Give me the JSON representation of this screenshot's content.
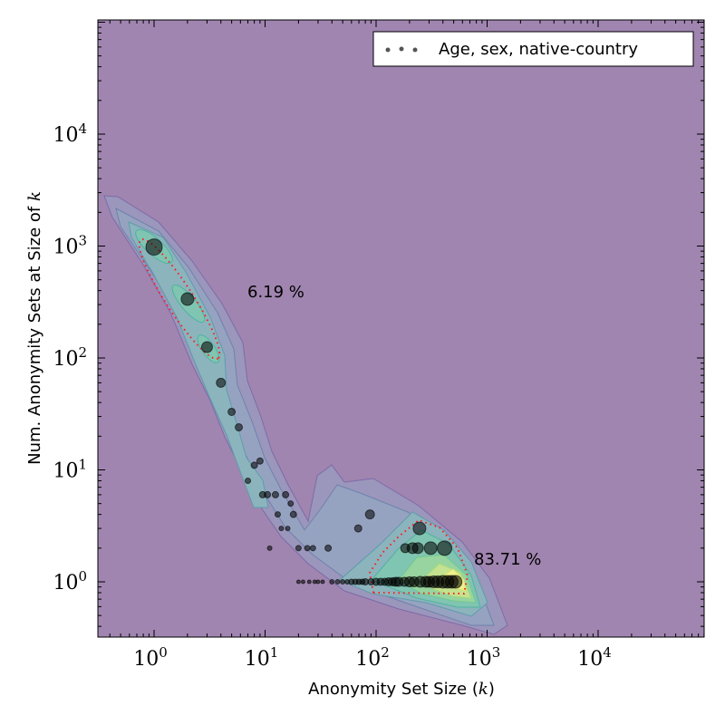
{
  "chart_data": {
    "type": "scatter",
    "title": "",
    "xlabel_text": "Anonymity Set Size",
    "xlabel_var": "k",
    "ylabel_text": "Num. Anonymity Sets at Size of",
    "ylabel_var": "k",
    "xscale": "log",
    "yscale": "log",
    "xlim": [
      0.316,
      89000
    ],
    "ylim": [
      0.32,
      100000
    ],
    "xtick_exponents": [
      0,
      1,
      2,
      3,
      4
    ],
    "ytick_exponents": [
      0,
      1,
      2,
      3,
      4
    ],
    "tick_base": "10",
    "legend": {
      "label": "Age, sex, native-country",
      "placement": "top-right"
    },
    "annotations": [
      {
        "text": "6.19 %",
        "k": 6.8,
        "n": 370
      },
      {
        "text": "83.71 %",
        "k": 800,
        "n": 1.55
      }
    ],
    "background_color": "#a085b0",
    "series": [
      {
        "name": "Age, sex, native-country",
        "points": [
          {
            "k": 1,
            "n": 980,
            "w": 9
          },
          {
            "k": 2,
            "n": 336,
            "w": 7
          },
          {
            "k": 3,
            "n": 125,
            "w": 6
          },
          {
            "k": 4,
            "n": 60,
            "w": 5
          },
          {
            "k": 5,
            "n": 33,
            "w": 4
          },
          {
            "k": 5.8,
            "n": 24,
            "w": 4
          },
          {
            "k": 7,
            "n": 8,
            "w": 3
          },
          {
            "k": 8,
            "n": 11,
            "w": 3.5
          },
          {
            "k": 9,
            "n": 12,
            "w": 3.5
          },
          {
            "k": 9.5,
            "n": 6,
            "w": 3.5
          },
          {
            "k": 10.5,
            "n": 6,
            "w": 3.5
          },
          {
            "k": 12.4,
            "n": 6,
            "w": 3.5
          },
          {
            "k": 15.3,
            "n": 6,
            "w": 3.5
          },
          {
            "k": 17,
            "n": 5,
            "w": 3
          },
          {
            "k": 13,
            "n": 4,
            "w": 3
          },
          {
            "k": 18,
            "n": 4,
            "w": 3.5
          },
          {
            "k": 14,
            "n": 3,
            "w": 2.5
          },
          {
            "k": 16,
            "n": 3,
            "w": 2.5
          },
          {
            "k": 11,
            "n": 2,
            "w": 2.5
          },
          {
            "k": 20,
            "n": 2,
            "w": 3
          },
          {
            "k": 24,
            "n": 2,
            "w": 3
          },
          {
            "k": 27,
            "n": 2,
            "w": 3
          },
          {
            "k": 37,
            "n": 2,
            "w": 3.5
          },
          {
            "k": 69,
            "n": 3,
            "w": 4
          },
          {
            "k": 88,
            "n": 4,
            "w": 5
          },
          {
            "k": 246,
            "n": 3,
            "w": 7
          },
          {
            "k": 183,
            "n": 2,
            "w": 5
          },
          {
            "k": 213,
            "n": 2,
            "w": 6
          },
          {
            "k": 238,
            "n": 2,
            "w": 6
          },
          {
            "k": 310,
            "n": 2,
            "w": 7
          },
          {
            "k": 414,
            "n": 2,
            "w": 8
          },
          {
            "k": 20,
            "n": 1,
            "w": 2
          },
          {
            "k": 22,
            "n": 1,
            "w": 2
          },
          {
            "k": 25,
            "n": 1,
            "w": 2
          },
          {
            "k": 28,
            "n": 1,
            "w": 2
          },
          {
            "k": 30,
            "n": 1,
            "w": 2
          },
          {
            "k": 33,
            "n": 1,
            "w": 2
          },
          {
            "k": 40,
            "n": 1,
            "w": 2.5
          },
          {
            "k": 45,
            "n": 1,
            "w": 2.5
          },
          {
            "k": 50,
            "n": 1,
            "w": 2.5
          },
          {
            "k": 55,
            "n": 1,
            "w": 2.5
          },
          {
            "k": 60,
            "n": 1,
            "w": 3
          },
          {
            "k": 65,
            "n": 1,
            "w": 3
          },
          {
            "k": 70,
            "n": 1,
            "w": 3
          },
          {
            "k": 75,
            "n": 1,
            "w": 3
          },
          {
            "k": 80,
            "n": 1,
            "w": 3.5
          },
          {
            "k": 90,
            "n": 1,
            "w": 3.5
          },
          {
            "k": 100,
            "n": 1,
            "w": 4
          },
          {
            "k": 110,
            "n": 1,
            "w": 4
          },
          {
            "k": 120,
            "n": 1,
            "w": 4
          },
          {
            "k": 130,
            "n": 1,
            "w": 4.5
          },
          {
            "k": 140,
            "n": 1,
            "w": 4.5
          },
          {
            "k": 150,
            "n": 1,
            "w": 5
          },
          {
            "k": 160,
            "n": 1,
            "w": 5
          },
          {
            "k": 180,
            "n": 1,
            "w": 5
          },
          {
            "k": 200,
            "n": 1,
            "w": 5.5
          },
          {
            "k": 220,
            "n": 1,
            "w": 5.5
          },
          {
            "k": 250,
            "n": 1,
            "w": 6
          },
          {
            "k": 280,
            "n": 1,
            "w": 6
          },
          {
            "k": 300,
            "n": 1,
            "w": 6
          },
          {
            "k": 330,
            "n": 1,
            "w": 6.5
          },
          {
            "k": 360,
            "n": 1,
            "w": 6.5
          },
          {
            "k": 400,
            "n": 1,
            "w": 7
          },
          {
            "k": 440,
            "n": 1,
            "w": 7
          },
          {
            "k": 480,
            "n": 1,
            "w": 7
          },
          {
            "k": 520,
            "n": 1,
            "w": 7
          }
        ]
      }
    ]
  }
}
